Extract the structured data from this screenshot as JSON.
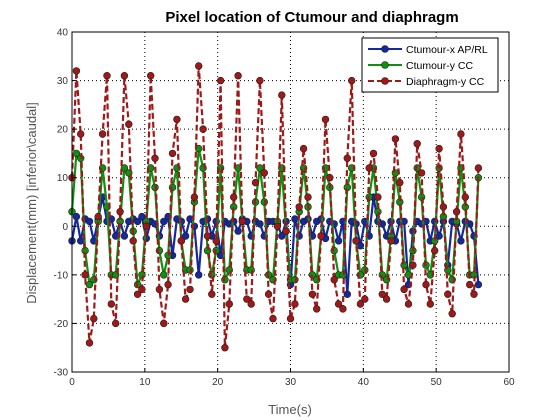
{
  "chart_data": {
    "type": "line",
    "title": "Pixel location of Ctumour and diaphragm",
    "xlabel": "Time(s)",
    "ylabel": "Displacement(mm) [inferior\\caudal]",
    "xlim": [
      0,
      60
    ],
    "ylim": [
      -30,
      40
    ],
    "xticks": [
      0,
      10,
      20,
      30,
      40,
      50,
      60
    ],
    "yticks": [
      -30,
      -20,
      -10,
      0,
      10,
      20,
      30,
      40
    ],
    "grid": true,
    "legend_position": "top-right",
    "series": [
      {
        "name": "Ctumour-x AP/RL",
        "color": "#1428a0",
        "line_style": "solid",
        "x": [
          0.0,
          0.6,
          1.2,
          1.8,
          2.4,
          3.0,
          3.6,
          4.2,
          4.8,
          5.4,
          6.0,
          6.6,
          7.2,
          7.8,
          8.4,
          9.0,
          9.6,
          10.2,
          10.8,
          11.4,
          12.0,
          12.6,
          13.2,
          13.8,
          14.4,
          15.0,
          15.6,
          16.2,
          16.8,
          17.4,
          18.0,
          18.6,
          19.2,
          19.8,
          20.4,
          21.0,
          21.6,
          22.2,
          22.8,
          23.4,
          24.0,
          24.6,
          25.2,
          25.8,
          26.4,
          27.0,
          27.6,
          28.2,
          28.8,
          29.4,
          30.0,
          30.6,
          31.2,
          31.8,
          32.4,
          33.0,
          33.6,
          34.2,
          34.8,
          35.4,
          36.0,
          36.6,
          37.2,
          37.8,
          38.4,
          39.0,
          39.6,
          40.2,
          40.8,
          41.4,
          42.0,
          42.6,
          43.2,
          43.8,
          44.4,
          45.0,
          45.6,
          46.2,
          46.8,
          47.4,
          48.0,
          48.6,
          49.2,
          49.8,
          50.4,
          51.0,
          51.6,
          52.2,
          52.8,
          53.4,
          54.0,
          54.6,
          55.2,
          55.8
        ],
        "values": [
          -3,
          2,
          -3,
          1.5,
          1,
          -3,
          1.5,
          6,
          1,
          1.5,
          -2,
          1,
          -2,
          1,
          1.5,
          1,
          2,
          -2.5,
          1,
          0.5,
          -2,
          1,
          2,
          -6,
          1.5,
          1,
          -2,
          1.5,
          0,
          -10,
          1,
          1.5,
          -2,
          1,
          -6,
          1,
          0.5,
          1,
          -1,
          1.5,
          1,
          -2,
          1,
          0.5,
          -2,
          1,
          1,
          0.5,
          -2,
          1,
          -12,
          1.5,
          -2,
          1,
          1.5,
          -2,
          1,
          1.5,
          -2.5,
          1,
          0.5,
          -3,
          1,
          -14,
          1,
          0.5,
          -4,
          1,
          -2,
          6,
          1,
          0.5,
          -2,
          1,
          -3,
          1,
          1,
          -12,
          -1,
          1,
          0.5,
          1,
          -3,
          1,
          -2,
          1,
          -8,
          1,
          0.5,
          -3,
          1,
          0.5,
          -2,
          -12
        ]
      },
      {
        "name": "Ctumour-y CC",
        "color": "#109010",
        "line_style": "solid",
        "x": [
          0.0,
          0.6,
          1.2,
          1.8,
          2.4,
          3.0,
          3.6,
          4.2,
          4.8,
          5.4,
          6.0,
          6.6,
          7.2,
          7.8,
          8.4,
          9.0,
          9.6,
          10.2,
          10.8,
          11.4,
          12.0,
          12.6,
          13.2,
          13.8,
          14.4,
          15.0,
          15.6,
          16.2,
          16.8,
          17.4,
          18.0,
          18.6,
          19.2,
          19.8,
          20.4,
          21.0,
          21.6,
          22.2,
          22.8,
          23.4,
          24.0,
          24.6,
          25.2,
          25.8,
          26.4,
          27.0,
          27.6,
          28.2,
          28.8,
          29.4,
          30.0,
          30.6,
          31.2,
          31.8,
          32.4,
          33.0,
          33.6,
          34.2,
          34.8,
          35.4,
          36.0,
          36.6,
          37.2,
          37.8,
          38.4,
          39.0,
          39.6,
          40.2,
          40.8,
          41.4,
          42.0,
          42.6,
          43.2,
          43.8,
          44.4,
          45.0,
          45.6,
          46.2,
          46.8,
          47.4,
          48.0,
          48.6,
          49.2,
          49.8,
          50.4,
          51.0,
          51.6,
          52.2,
          52.8,
          53.4,
          54.0,
          54.6,
          55.2,
          55.8
        ],
        "values": [
          3,
          15,
          14,
          -5,
          -12,
          -11,
          1,
          12,
          4,
          -10,
          -10,
          1,
          12,
          11,
          -1,
          -12,
          -10,
          1,
          12,
          8,
          -5,
          -10,
          -6,
          8,
          12,
          -3,
          -9,
          -9,
          5,
          16,
          12,
          -5,
          -10,
          -5,
          12,
          -11,
          -9,
          4,
          12,
          1,
          -9,
          -9,
          5,
          12,
          5,
          -10,
          -11,
          1,
          12,
          -1,
          -11,
          -11,
          3,
          12,
          4,
          -10,
          -11,
          -2,
          12,
          8,
          -5,
          -10,
          -10,
          8,
          12,
          -3,
          -10,
          -9,
          6,
          12,
          3,
          -10,
          -11,
          -2,
          11,
          5,
          -8,
          -10,
          -5,
          12,
          6,
          -8,
          -10,
          -3,
          12,
          2,
          -9,
          -11,
          1,
          12,
          4,
          -10,
          -10,
          10
        ]
      },
      {
        "name": "Diaphragm-y CC",
        "color": "#a01818",
        "line_style": "dashed",
        "x": [
          0.0,
          0.6,
          1.2,
          1.8,
          2.4,
          3.0,
          3.6,
          4.2,
          4.8,
          5.4,
          6.0,
          6.6,
          7.2,
          7.8,
          8.4,
          9.0,
          9.6,
          10.2,
          10.8,
          11.4,
          12.0,
          12.6,
          13.2,
          13.8,
          14.4,
          15.0,
          15.6,
          16.2,
          16.8,
          17.4,
          18.0,
          18.6,
          19.2,
          19.8,
          20.4,
          21.0,
          21.6,
          22.2,
          22.8,
          23.4,
          24.0,
          24.6,
          25.2,
          25.8,
          26.4,
          27.0,
          27.6,
          28.2,
          28.8,
          29.4,
          30.0,
          30.6,
          31.2,
          31.8,
          32.4,
          33.0,
          33.6,
          34.2,
          34.8,
          35.4,
          36.0,
          36.6,
          37.2,
          37.8,
          38.4,
          39.0,
          39.6,
          40.2,
          40.8,
          41.4,
          42.0,
          42.6,
          43.2,
          43.8,
          44.4,
          45.0,
          45.6,
          46.2,
          46.8,
          47.4,
          48.0,
          48.6,
          49.2,
          49.8,
          50.4,
          51.0,
          51.6,
          52.2,
          52.8,
          53.4,
          54.0,
          54.6,
          55.2,
          55.8
        ],
        "values": [
          10,
          32,
          19,
          -10,
          -24,
          -19,
          2,
          19,
          31,
          -16,
          -20,
          3,
          31,
          21,
          -3,
          -14,
          -13,
          0,
          31,
          14,
          -13,
          -20,
          -12,
          15,
          22,
          -3,
          -15,
          -13,
          6,
          33,
          20,
          -2,
          -14,
          -3,
          30,
          -25,
          -16,
          6,
          31,
          1,
          -15,
          -16,
          9,
          30,
          11,
          -14,
          -19,
          0,
          27,
          -1,
          -19,
          -16,
          4,
          16,
          6,
          -14,
          -17,
          -2,
          22,
          10,
          -11,
          -16,
          -17,
          14,
          30,
          -3,
          -16,
          -15,
          12,
          15,
          6,
          -14,
          -15,
          -3,
          18,
          9,
          -13,
          -16,
          -8,
          17,
          11,
          -12,
          -16,
          -5,
          16,
          4,
          -14,
          -18,
          3,
          19,
          6,
          -12,
          -14,
          12
        ]
      }
    ]
  }
}
